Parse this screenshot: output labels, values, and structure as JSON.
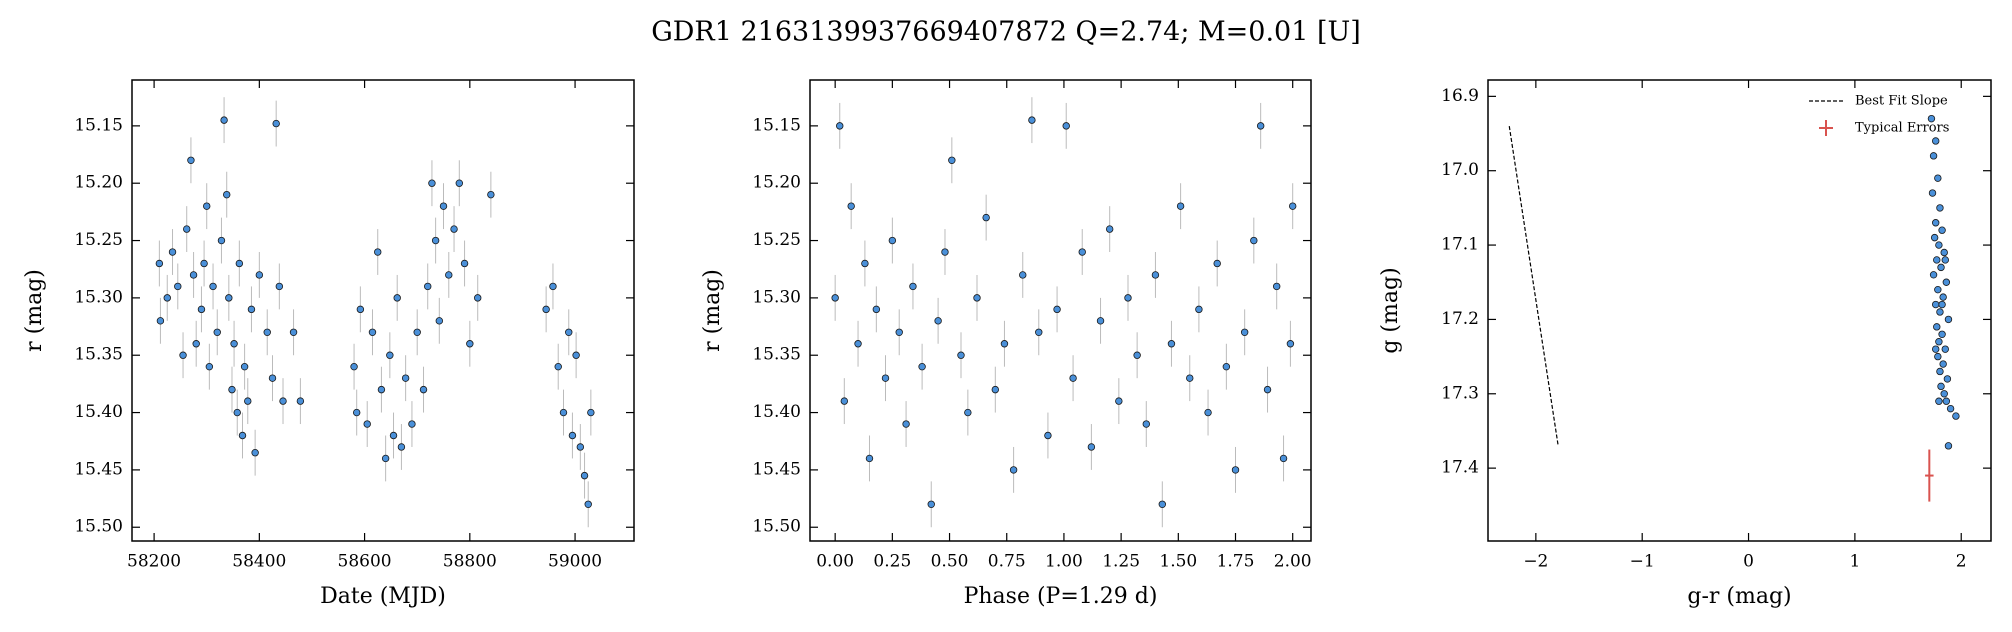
{
  "title": "GDR1 2163139937669407872  Q=2.74; M=0.01 [U]",
  "chart_data": [
    {
      "type": "scatter",
      "xlabel": "Date (MJD)",
      "ylabel": "r (mag)",
      "xlim": [
        58158,
        59112
      ],
      "ylim": [
        15.11,
        15.512
      ],
      "y_inverted": true,
      "xticks": [
        58200,
        58400,
        58600,
        58800,
        59000
      ],
      "yticks": [
        15.15,
        {
          "value": 15.2,
          "label": "15.20"
        },
        15.25,
        {
          "value": 15.3,
          "label": "15.30"
        },
        15.35,
        {
          "value": 15.4,
          "label": "15.40"
        },
        15.45,
        {
          "value": 15.5,
          "label": "15.50"
        }
      ],
      "series": [
        {
          "type": "scatter",
          "color": "#4a90d9",
          "yerr": 0.02,
          "x": [
            58210,
            58212,
            58225,
            58235,
            58245,
            58255,
            58262,
            58270,
            58275,
            58280,
            58290,
            58295,
            58300,
            58305,
            58312,
            58320,
            58328,
            58333,
            58338,
            58342,
            58348,
            58352,
            58358,
            58362,
            58368,
            58372,
            58378,
            58385,
            58392,
            58400,
            58415,
            58425,
            58432,
            58438,
            58445,
            58465,
            58478,
            58580,
            58585,
            58592,
            58605,
            58615,
            58625,
            58632,
            58640,
            58648,
            58655,
            58662,
            58670,
            58678,
            58690,
            58700,
            58712,
            58720,
            58728,
            58735,
            58742,
            58750,
            58760,
            58770,
            58780,
            58790,
            58800,
            58815,
            58840,
            58945,
            58958,
            58968,
            58978,
            58988,
            58995,
            59002,
            59010,
            59018,
            59025,
            59030
          ],
          "y": [
            15.27,
            15.32,
            15.3,
            15.26,
            15.29,
            15.35,
            15.24,
            15.18,
            15.28,
            15.34,
            15.31,
            15.27,
            15.22,
            15.36,
            15.29,
            15.33,
            15.25,
            15.145,
            15.21,
            15.3,
            15.38,
            15.34,
            15.4,
            15.27,
            15.42,
            15.36,
            15.39,
            15.31,
            15.435,
            15.28,
            15.33,
            15.37,
            15.148,
            15.29,
            15.39,
            15.33,
            15.39,
            15.36,
            15.4,
            15.31,
            15.41,
            15.33,
            15.26,
            15.38,
            15.44,
            15.35,
            15.42,
            15.3,
            15.43,
            15.37,
            15.41,
            15.33,
            15.38,
            15.29,
            15.2,
            15.25,
            15.32,
            15.22,
            15.28,
            15.24,
            15.2,
            15.27,
            15.34,
            15.3,
            15.21,
            15.31,
            15.29,
            15.36,
            15.4,
            15.33,
            15.42,
            15.35,
            15.43,
            15.455,
            15.48,
            15.4
          ]
        }
      ]
    },
    {
      "type": "scatter",
      "xlabel": "Phase (P=1.29 d)",
      "ylabel": "r (mag)",
      "xlim": [
        -0.11,
        2.08
      ],
      "ylim": [
        15.11,
        15.512
      ],
      "y_inverted": true,
      "xticks": [
        {
          "value": 0,
          "label": "0.00"
        },
        0.25,
        {
          "value": 0.5,
          "label": "0.50"
        },
        0.75,
        {
          "value": 1,
          "label": "1.00"
        },
        1.25,
        {
          "value": 1.5,
          "label": "1.50"
        },
        1.75,
        {
          "value": 2,
          "label": "2.00"
        }
      ],
      "yticks": [
        15.15,
        {
          "value": 15.2,
          "label": "15.20"
        },
        15.25,
        {
          "value": 15.3,
          "label": "15.30"
        },
        15.35,
        {
          "value": 15.4,
          "label": "15.40"
        },
        15.45,
        {
          "value": 15.5,
          "label": "15.50"
        }
      ],
      "series": [
        {
          "type": "scatter",
          "color": "#4a90d9",
          "yerr": 0.02,
          "x": [
            0,
            0.02,
            0.04,
            0.07,
            0.1,
            0.13,
            0.15,
            0.18,
            0.22,
            0.25,
            0.28,
            0.31,
            0.34,
            0.38,
            0.42,
            0.45,
            0.48,
            0.51,
            0.55,
            0.58,
            0.62,
            0.66,
            0.7,
            0.74,
            0.78,
            0.82,
            0.86,
            0.89,
            0.93,
            0.97,
            1.01,
            1.04,
            1.08,
            1.12,
            1.16,
            1.2,
            1.24,
            1.28,
            1.32,
            1.36,
            1.4,
            1.43,
            1.47,
            1.51,
            1.55,
            1.59,
            1.63,
            1.67,
            1.71,
            1.75,
            1.79,
            1.83,
            1.86,
            1.89,
            1.93,
            1.96,
            1.99,
            2
          ],
          "y": [
            15.3,
            15.15,
            15.39,
            15.22,
            15.34,
            15.27,
            15.44,
            15.31,
            15.37,
            15.25,
            15.33,
            15.41,
            15.29,
            15.36,
            15.48,
            15.32,
            15.26,
            15.18,
            15.35,
            15.4,
            15.3,
            15.23,
            15.38,
            15.34,
            15.45,
            15.28,
            15.145,
            15.33,
            15.42,
            15.31,
            15.15,
            15.37,
            15.26,
            15.43,
            15.32,
            15.24,
            15.39,
            15.3,
            15.35,
            15.41,
            15.28,
            15.48,
            15.34,
            15.22,
            15.37,
            15.31,
            15.4,
            15.27,
            15.36,
            15.45,
            15.33,
            15.25,
            15.15,
            15.38,
            15.29,
            15.44,
            15.34,
            15.22
          ]
        }
      ]
    },
    {
      "type": "scatter",
      "xlabel": "g-r (mag)",
      "ylabel": "g (mag)",
      "xlim": [
        -2.45,
        2.28
      ],
      "ylim": [
        16.878,
        17.498
      ],
      "y_inverted": true,
      "xticks": [
        {
          "value": -2,
          "label": "−2"
        },
        {
          "value": -1,
          "label": "−1"
        },
        0,
        1,
        2
      ],
      "yticks": [
        16.9,
        {
          "value": 17,
          "label": "17.0"
        },
        17.1,
        17.2,
        17.3,
        17.4
      ],
      "legend": "upper right",
      "series": [
        {
          "type": "scatter",
          "color": "#4a90d9",
          "x": [
            1.72,
            1.76,
            1.74,
            1.78,
            1.73,
            1.8,
            1.76,
            1.82,
            1.75,
            1.79,
            1.84,
            1.77,
            1.81,
            1.74,
            1.86,
            1.78,
            1.83,
            1.76,
            1.8,
            1.88,
            1.77,
            1.82,
            1.79,
            1.85,
            1.78,
            1.83,
            1.8,
            1.87,
            1.81,
            1.84,
            1.79,
            1.9,
            1.95,
            1.86,
            1.88,
            1.82,
            1.85,
            1.76
          ],
          "y": [
            16.93,
            16.96,
            16.98,
            17.01,
            17.03,
            17.05,
            17.07,
            17.08,
            17.09,
            17.1,
            17.11,
            17.12,
            17.13,
            17.14,
            17.15,
            17.16,
            17.17,
            17.18,
            17.19,
            17.2,
            17.21,
            17.22,
            17.23,
            17.24,
            17.25,
            17.26,
            17.27,
            17.28,
            17.29,
            17.3,
            17.31,
            17.32,
            17.33,
            17.31,
            17.37,
            17.18,
            17.12,
            17.24
          ]
        },
        {
          "type": "line",
          "name": "Best Fit Slope",
          "color": "#000000",
          "x": [
            -2.25,
            -1.79
          ],
          "y": [
            16.94,
            17.37
          ]
        },
        {
          "type": "errorbar",
          "name": "Typical Errors",
          "color": "#d9534f",
          "x": [
            1.7
          ],
          "y": [
            17.41
          ],
          "xerr": 0.04,
          "yerr": 0.035
        }
      ]
    }
  ]
}
